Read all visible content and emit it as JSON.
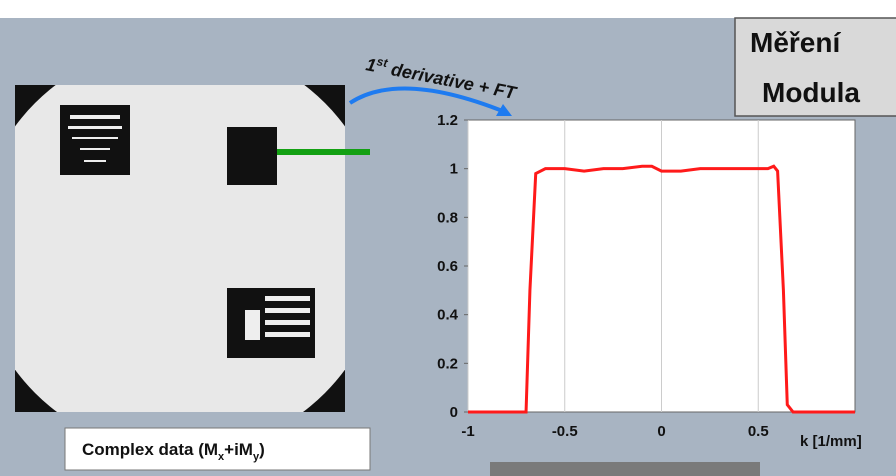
{
  "slide": {
    "title_lines": [
      "Měření",
      "Modula"
    ],
    "arrow_label": {
      "main": "1",
      "sup": "st",
      "rest": " derivative + FT"
    },
    "caption": {
      "a": "Complex data (M",
      "b": "x",
      "c": "+iM",
      "d": "y",
      "e": ")"
    }
  },
  "chart_data": {
    "type": "line",
    "x_label": "k [1/mm]",
    "x": [
      -1,
      -0.7,
      -0.68,
      -0.65,
      -0.6,
      -0.5,
      -0.4,
      -0.3,
      -0.2,
      -0.1,
      -0.05,
      0,
      0.1,
      0.2,
      0.3,
      0.4,
      0.5,
      0.55,
      0.58,
      0.6,
      0.63,
      0.65,
      0.68,
      1
    ],
    "series": [
      {
        "color": "#ff1a1a",
        "values": [
          0,
          0,
          0.5,
          0.98,
          1.0,
          1.0,
          0.99,
          1.0,
          1.0,
          1.01,
          1.01,
          0.99,
          0.99,
          1.0,
          1.0,
          1.0,
          1.0,
          1.0,
          1.01,
          0.99,
          0.5,
          0.03,
          0,
          0
        ]
      }
    ],
    "xlim": [
      -1,
      1
    ],
    "xticks": [
      -1,
      -0.5,
      0,
      0.5
    ],
    "ylim": [
      0,
      1.2
    ],
    "yticks": [
      0,
      0.2,
      0.4,
      0.6,
      0.8,
      1,
      1.2
    ],
    "grid": "x"
  }
}
